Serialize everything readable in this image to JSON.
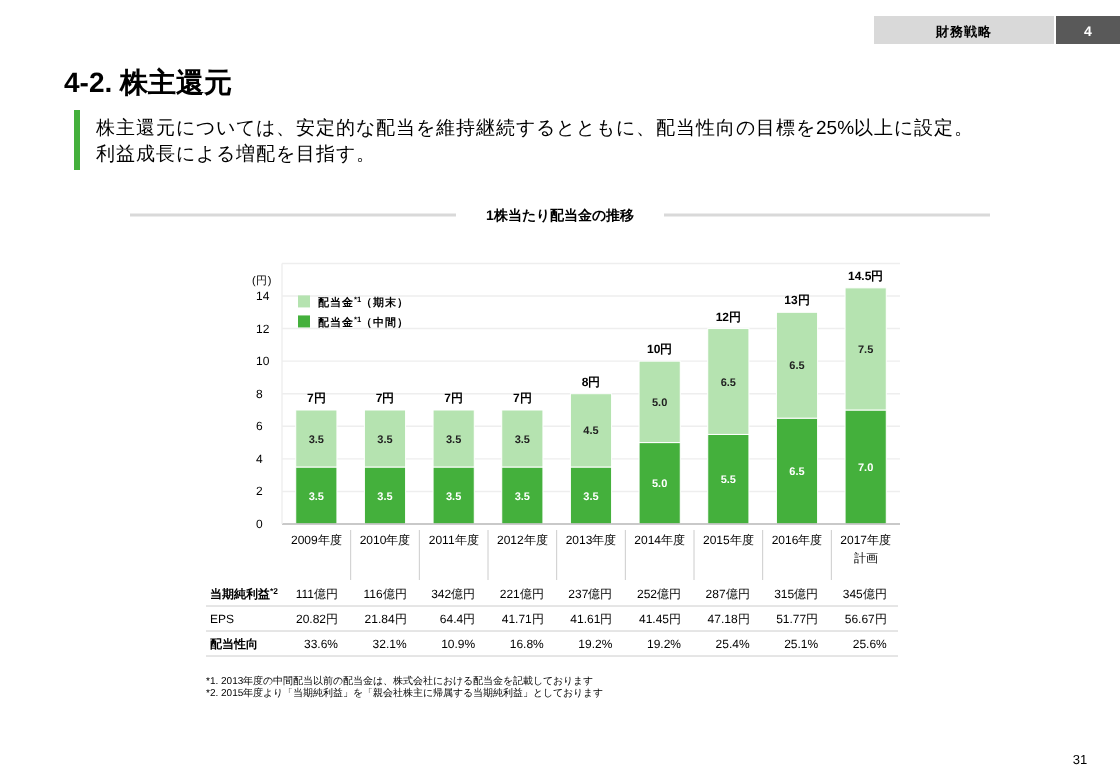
{
  "chart_data": [
    {
      "type": "other",
      "title": "4-2. 株主還元",
      "subtitle": "株主還元については、安定的な配当を維持継続するとともに、配当性向の目標を25%以上に設定。利益成長による増配を目指す。",
      "annotations": [
        "財務戦略",
        "4",
        "*1. 2013年度の中間配当以前の配当金は、株式会社における配当金を記載しております",
        "*2. 2015年度より「当期純利益」を「親会社株主に帰属する当期純利益」としております",
        "31"
      ]
    },
    {
      "type": "bar",
      "title": "1株当たり配当金の推移",
      "ylabel": "(円)",
      "stacked": true,
      "categories": [
        "2009年度",
        "2010年度",
        "2011年度",
        "2012年度",
        "2013年度",
        "2014年度",
        "2015年度",
        "2016年度",
        "2017年度計画"
      ],
      "series": [
        {
          "name": "配当金$^{*1}$（中間）",
          "color": "#44b03c",
          "values": [
            3.5,
            3.5,
            3.5,
            3.5,
            3.5,
            5.0,
            5.5,
            6.5,
            7.0
          ],
          "value_labels": [
            "3.5",
            "3.5",
            "3.5",
            "3.5",
            "3.5",
            "5.0",
            "5.5",
            "6.5",
            "7.0"
          ]
        },
        {
          "name": "配当金$^{*1}$（期末）",
          "color": "#b5e3b0",
          "values": [
            3.5,
            3.5,
            3.5,
            3.5,
            4.5,
            5.0,
            6.5,
            6.5,
            7.5
          ],
          "value_labels": [
            "3.5",
            "3.5",
            "3.5",
            "3.5",
            "4.5",
            "5.0",
            "6.5",
            "6.5",
            "7.5"
          ]
        }
      ],
      "totals": [
        "7円",
        "7円",
        "7円",
        "7円",
        "8円",
        "10円",
        "12円",
        "13円",
        "14.5円"
      ],
      "ylim": [
        0,
        16
      ],
      "yticks": [
        0,
        2,
        4,
        6,
        8,
        10,
        12,
        14
      ],
      "grid": "y",
      "legend": "top left"
    },
    {
      "type": "other",
      "annotations": [
        "当期純利益$^{*2}$",
        "111億円",
        "116億円",
        "342億円",
        "221億円",
        "237億円",
        "252億円",
        "287億円",
        "315億円",
        "345億円",
        "EPS",
        "20.82円",
        "21.84円",
        "64.4円",
        "41.71円",
        "41.61円",
        "41.45円",
        "47.18円",
        "51.77円",
        "56.67円",
        "配当性向",
        "33.6%",
        "32.1%",
        "10.9%",
        "16.8%",
        "19.2%",
        "19.2%",
        "25.4%",
        "25.1%",
        "25.6%"
      ]
    }
  ]
}
